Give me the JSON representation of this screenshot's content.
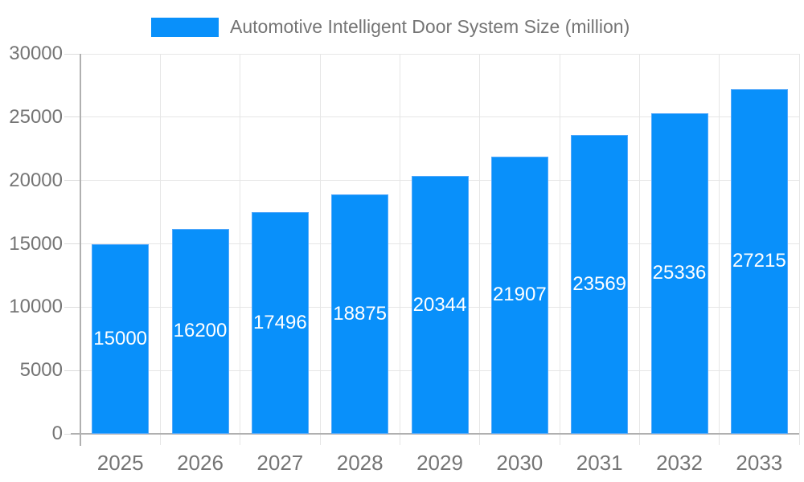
{
  "legend": {
    "label": "Automotive Intelligent Door System Size (million)"
  },
  "colors": {
    "background": "#ffffff",
    "bar": "#0990fa",
    "bar_edge": "#54a9fb",
    "bar_label": "#ffffff",
    "axis": "#b0b0b0",
    "grid": "#e6e6e6",
    "tick": "#dcdcdc",
    "text": "#757575"
  },
  "chart_data": {
    "type": "bar",
    "title": "Automotive Intelligent Door System Size (million)",
    "categories": [
      "2025",
      "2026",
      "2027",
      "2028",
      "2029",
      "2030",
      "2031",
      "2032",
      "2033"
    ],
    "series": [
      {
        "name": "Automotive Intelligent Door System Size (million)",
        "values": [
          15000,
          16200,
          17496,
          18875,
          20344,
          21907,
          23569,
          25336,
          27215
        ]
      }
    ],
    "xlabel": "",
    "ylabel": "",
    "ylim": [
      0,
      30000
    ],
    "yticks": [
      0,
      5000,
      10000,
      15000,
      20000,
      25000,
      30000
    ],
    "grid": true,
    "legend_position": "top",
    "bar_value_labels": "inside-center-white"
  }
}
